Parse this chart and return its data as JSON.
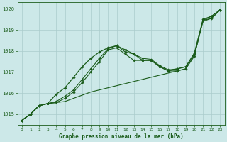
{
  "xlabel": "Graphe pression niveau de la mer (hPa)",
  "bg_color": "#cce8e8",
  "grid_color": "#aacccc",
  "line_color": "#1a5c1a",
  "ylim": [
    1014.5,
    1020.3
  ],
  "xlim": [
    -0.5,
    23.5
  ],
  "yticks": [
    1015,
    1016,
    1017,
    1018,
    1019,
    1020
  ],
  "xticks": [
    0,
    1,
    2,
    3,
    4,
    5,
    6,
    7,
    8,
    9,
    10,
    11,
    12,
    13,
    14,
    15,
    16,
    17,
    18,
    19,
    20,
    21,
    22,
    23
  ],
  "series": [
    {
      "y": [
        1014.7,
        1015.0,
        1015.4,
        1015.5,
        1015.55,
        1015.6,
        1015.75,
        1015.9,
        1016.05,
        1016.15,
        1016.25,
        1016.35,
        1016.45,
        1016.55,
        1016.65,
        1016.75,
        1016.85,
        1016.95,
        1017.05,
        1017.15,
        1017.8,
        1019.4,
        1019.55,
        1019.95
      ],
      "marker": false,
      "lw": 0.8
    },
    {
      "y": [
        1014.7,
        1015.0,
        1015.4,
        1015.5,
        1015.55,
        1015.75,
        1016.05,
        1016.5,
        1017.0,
        1017.5,
        1018.05,
        1018.15,
        1017.85,
        1017.55,
        1017.55,
        1017.55,
        1017.25,
        1017.05,
        1017.05,
        1017.15,
        1017.75,
        1019.45,
        1019.55,
        1019.95
      ],
      "marker": true,
      "lw": 0.8
    },
    {
      "y": [
        1014.7,
        1015.0,
        1015.4,
        1015.5,
        1015.6,
        1015.85,
        1016.15,
        1016.65,
        1017.15,
        1017.65,
        1018.1,
        1018.25,
        1017.95,
        1017.85,
        1017.65,
        1017.6,
        1017.3,
        1017.1,
        1017.15,
        1017.25,
        1017.9,
        1019.5,
        1019.65,
        1019.95
      ],
      "marker": true,
      "lw": 0.8
    },
    {
      "y": [
        1014.7,
        1015.0,
        1015.4,
        1015.5,
        1015.95,
        1016.25,
        1016.75,
        1017.25,
        1017.65,
        1017.95,
        1018.15,
        1018.25,
        1018.05,
        1017.85,
        1017.55,
        1017.55,
        1017.25,
        1017.05,
        1017.15,
        1017.25,
        1017.85,
        1019.45,
        1019.65,
        1019.95
      ],
      "marker": true,
      "lw": 0.9
    }
  ]
}
